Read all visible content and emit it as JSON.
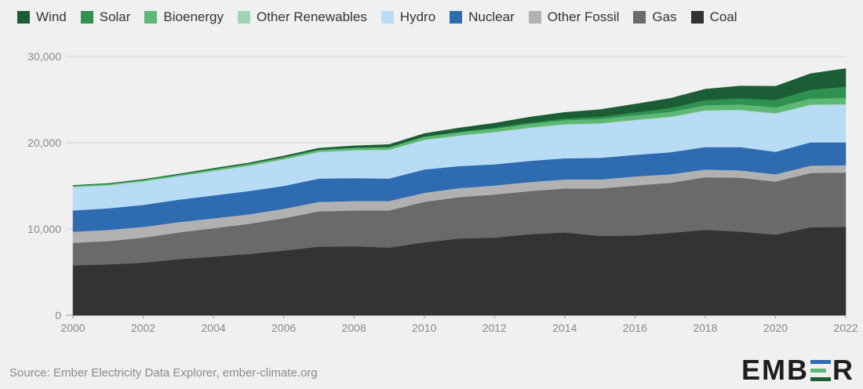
{
  "colors": {
    "Wind": "#1b5e35",
    "Solar": "#2f9150",
    "Bioenergy": "#5cb874",
    "Other Renewables": "#9ed4b0",
    "Hydro": "#b8dcf6",
    "Nuclear": "#2e6bb0",
    "Other Fossil": "#b1b1b1",
    "Gas": "#6a6a6a",
    "Coal": "#333333",
    "grid": "#cfcfcf",
    "background": "#f0f0f0"
  },
  "legend": [
    {
      "label": "Wind",
      "icon": "square-swatch"
    },
    {
      "label": "Solar",
      "icon": "square-swatch"
    },
    {
      "label": "Bioenergy",
      "icon": "square-swatch"
    },
    {
      "label": "Other Renewables",
      "icon": "square-swatch"
    },
    {
      "label": "Hydro",
      "icon": "square-swatch"
    },
    {
      "label": "Nuclear",
      "icon": "square-swatch"
    },
    {
      "label": "Other Fossil",
      "icon": "square-swatch"
    },
    {
      "label": "Gas",
      "icon": "square-swatch"
    },
    {
      "label": "Coal",
      "icon": "square-swatch"
    }
  ],
  "footer": {
    "source": "Source: Ember Electricity Data Explorer, ember-climate.org",
    "logo": "EMBER"
  },
  "chart_data": {
    "type": "area",
    "stacked": true,
    "title": "",
    "xlabel": "",
    "ylabel": "",
    "ylim": [
      0,
      30000
    ],
    "yticks": [
      "0",
      "10,000",
      "20,000",
      "30,000"
    ],
    "xticks": [
      "2000",
      "2002",
      "2004",
      "2006",
      "2008",
      "2010",
      "2012",
      "2014",
      "2016",
      "2018",
      "2020",
      "2022"
    ],
    "grid": true,
    "legend_position": "top",
    "x": [
      2000,
      2001,
      2002,
      2003,
      2004,
      2005,
      2006,
      2007,
      2008,
      2009,
      2010,
      2011,
      2012,
      2013,
      2014,
      2015,
      2016,
      2017,
      2018,
      2019,
      2020,
      2021,
      2022
    ],
    "series": [
      {
        "name": "Coal",
        "values": [
          5800,
          5900,
          6100,
          6500,
          6800,
          7100,
          7500,
          7950,
          8000,
          7850,
          8450,
          8900,
          9000,
          9400,
          9600,
          9200,
          9250,
          9550,
          9900,
          9700,
          9350,
          10200,
          10250
        ]
      },
      {
        "name": "Gas",
        "values": [
          2600,
          2700,
          2900,
          3100,
          3300,
          3500,
          3750,
          4100,
          4150,
          4300,
          4700,
          4800,
          5000,
          5000,
          5100,
          5500,
          5800,
          5800,
          6100,
          6250,
          6150,
          6300,
          6300
        ]
      },
      {
        "name": "Other Fossil",
        "values": [
          1300,
          1300,
          1250,
          1200,
          1150,
          1100,
          1100,
          1100,
          1100,
          1100,
          1050,
          1050,
          1050,
          1050,
          1050,
          1050,
          1050,
          1000,
          900,
          850,
          850,
          850,
          850
        ]
      },
      {
        "name": "Nuclear",
        "values": [
          2450,
          2500,
          2550,
          2600,
          2650,
          2700,
          2650,
          2700,
          2650,
          2600,
          2700,
          2550,
          2450,
          2450,
          2450,
          2500,
          2500,
          2550,
          2600,
          2700,
          2600,
          2700,
          2650
        ]
      },
      {
        "name": "Hydro",
        "values": [
          2700,
          2650,
          2700,
          2700,
          2800,
          2900,
          3050,
          3050,
          3200,
          3300,
          3400,
          3500,
          3700,
          3800,
          3900,
          3950,
          4000,
          4050,
          4200,
          4250,
          4400,
          4300,
          4350
        ]
      },
      {
        "name": "Other Renewables",
        "values": [
          50,
          50,
          50,
          50,
          60,
          60,
          60,
          60,
          60,
          65,
          65,
          70,
          70,
          75,
          75,
          80,
          80,
          85,
          85,
          90,
          90,
          95,
          100
        ]
      },
      {
        "name": "Bioenergy",
        "values": [
          130,
          140,
          150,
          160,
          180,
          200,
          220,
          240,
          260,
          280,
          330,
          350,
          380,
          420,
          450,
          480,
          510,
          540,
          580,
          620,
          660,
          680,
          700
        ]
      },
      {
        "name": "Solar",
        "values": [
          0,
          0,
          0,
          0,
          0,
          0,
          0,
          0,
          10,
          20,
          30,
          60,
          100,
          140,
          190,
          250,
          330,
          450,
          580,
          700,
          850,
          1030,
          1300
        ]
      },
      {
        "name": "Wind",
        "values": [
          30,
          40,
          50,
          60,
          90,
          100,
          140,
          170,
          220,
          280,
          340,
          440,
          520,
          640,
          710,
          830,
          960,
          1120,
          1270,
          1420,
          1600,
          1860,
          2100
        ]
      }
    ]
  }
}
